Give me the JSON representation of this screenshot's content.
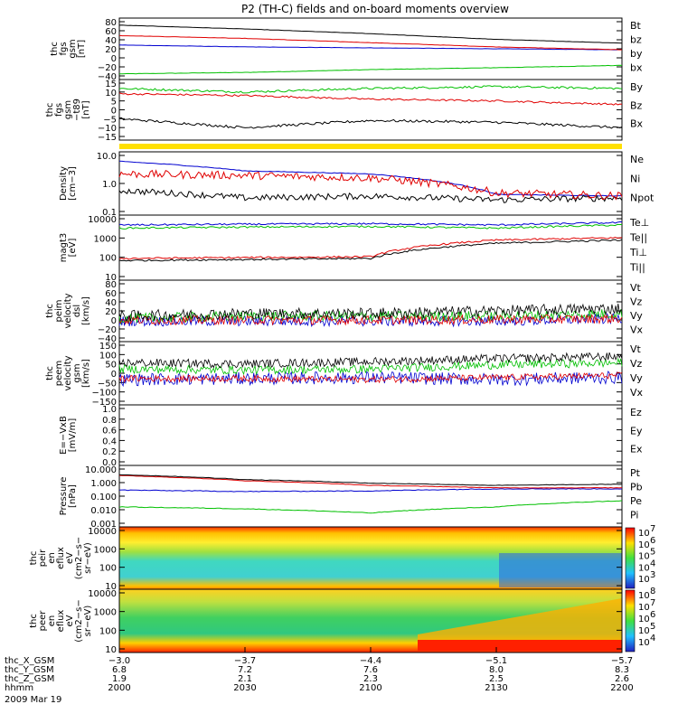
{
  "title": "P2 (TH-C) fields and on-board moments overview",
  "colors": {
    "black": "#000000",
    "red": "#e00000",
    "green": "#00c000",
    "blue": "#0000d0",
    "yellow": "#ffe000"
  },
  "panels": [
    {
      "id": "fgs_gsm",
      "ylabel": [
        "thc",
        "fgs",
        "gsm",
        "[nT]"
      ],
      "ticks": [
        "80",
        "60",
        "40",
        "20",
        "0",
        "−20",
        "−40"
      ],
      "scale": "linear",
      "ylim": [
        -45,
        85
      ],
      "legend": [
        {
          "text": "Bt",
          "color": "black"
        },
        {
          "text": "bz",
          "color": "red"
        },
        {
          "text": "by",
          "color": "green"
        },
        {
          "text": "bx",
          "color": "blue"
        }
      ]
    },
    {
      "id": "fgs_gsm_tbp",
      "ylabel": [
        "thc",
        "fgs",
        "gsm",
        "−t89",
        "[nT]"
      ],
      "ticks": [
        "15",
        "10",
        "5",
        "0",
        "−5",
        "−10",
        "−15"
      ],
      "scale": "linear",
      "ylim": [
        -17,
        17
      ],
      "legend": [
        {
          "text": "By",
          "color": "green"
        },
        {
          "text": "Bz",
          "color": "red"
        },
        {
          "text": "Bx",
          "color": "black"
        }
      ]
    },
    {
      "id": "density",
      "ylabel": [
        "Density",
        "[cm−3]"
      ],
      "ticks": [
        "10.0",
        "1.0",
        "0.1"
      ],
      "scale": "log",
      "ylim": [
        0.1,
        10
      ],
      "legend": [
        {
          "text": "Ne",
          "color": "red"
        },
        {
          "text": "Ni",
          "color": "black"
        },
        {
          "text": "Npot",
          "color": "blue"
        }
      ]
    },
    {
      "id": "temperature",
      "ylabel": [
        "magt3",
        "[eV]"
      ],
      "ticks": [
        "10000",
        "1000",
        "100",
        "10"
      ],
      "scale": "log",
      "ylim": [
        10,
        10000
      ],
      "legend": [
        {
          "text": "Te⊥",
          "color": "red"
        },
        {
          "text": "Te||",
          "color": "black"
        },
        {
          "text": "Ti⊥",
          "color": "red"
        },
        {
          "text": "Ti||",
          "color": "green"
        }
      ]
    },
    {
      "id": "peim_velocity",
      "ylabel": [
        "thc",
        "peim",
        "velocity",
        "dsl",
        "[km/s]"
      ],
      "ticks": [
        "80",
        "60",
        "40",
        "20",
        "0",
        "−20",
        "−40"
      ],
      "scale": "linear",
      "ylim": [
        -40,
        80
      ],
      "legend": [
        {
          "text": "Vt",
          "color": "black"
        },
        {
          "text": "Vz",
          "color": "red"
        },
        {
          "text": "Vy",
          "color": "green"
        },
        {
          "text": "Vx",
          "color": "blue"
        }
      ]
    },
    {
      "id": "peem_velocity",
      "ylabel": [
        "thc",
        "peem",
        "velocity",
        "gsm",
        "[km/s]"
      ],
      "ticks": [
        "150",
        "100",
        "50",
        "0",
        "−50",
        "−100",
        "−150"
      ],
      "scale": "linear",
      "ylim": [
        -150,
        150
      ],
      "legend": [
        {
          "text": "Vt",
          "color": "black"
        },
        {
          "text": "Vz",
          "color": "red"
        },
        {
          "text": "Vy",
          "color": "green"
        },
        {
          "text": "Vx",
          "color": "blue"
        }
      ]
    },
    {
      "id": "efield",
      "ylabel": [
        "E=−VxB",
        "[mV/m]"
      ],
      "ticks": [
        "1.0",
        "0.8",
        "0.6",
        "0.4",
        "0.2",
        "0.0"
      ],
      "scale": "linear",
      "ylim": [
        0,
        1
      ],
      "legend": [
        {
          "text": "Ez",
          "color": "red"
        },
        {
          "text": "Ey",
          "color": "green"
        },
        {
          "text": "Ex",
          "color": "blue"
        }
      ]
    },
    {
      "id": "pressure",
      "ylabel": [
        "Pressure",
        "[nPa]"
      ],
      "ticks": [
        "10.000",
        "1.000",
        "0.100",
        "0.010",
        "0.001"
      ],
      "scale": "log",
      "ylim": [
        0.001,
        10
      ],
      "legend": [
        {
          "text": "Pt",
          "color": "black"
        },
        {
          "text": "Pb",
          "color": "red"
        },
        {
          "text": "Pe",
          "color": "green"
        },
        {
          "text": "Pi",
          "color": "blue"
        }
      ]
    },
    {
      "id": "peir_eflux",
      "ylabel": [
        "thc",
        "peir",
        "en",
        "eflux",
        "eV",
        "(cm2−s−",
        "sr−eV)"
      ],
      "ticks": [
        "10000",
        "1000",
        "100",
        "10"
      ],
      "cbar": [
        "10",
        "10",
        "10",
        "10",
        "10"
      ],
      "cbar_exp": [
        "7",
        "6",
        "5",
        "4",
        "3"
      ]
    },
    {
      "id": "peer_eflux",
      "ylabel": [
        "thc",
        "peer",
        "en",
        "eflux",
        "eV",
        "(cm2−s−",
        "sr−eV)"
      ],
      "ticks": [
        "10000",
        "1000",
        "100",
        "10"
      ],
      "cbar": [
        "10",
        "10",
        "10",
        "10",
        "10"
      ],
      "cbar_exp": [
        "8",
        "7",
        "6",
        "5",
        "4"
      ]
    }
  ],
  "xaxis": {
    "rows": [
      {
        "label": "thc_X_GSM",
        "values": [
          "−3.0",
          "−3.7",
          "−4.4",
          "−5.1",
          "−5.7"
        ]
      },
      {
        "label": "thc_Y_GSM",
        "values": [
          "6.8",
          "7.2",
          "7.6",
          "8.0",
          "8.3"
        ]
      },
      {
        "label": "thc_Z_GSM",
        "values": [
          "1.9",
          "2.1",
          "2.3",
          "2.5",
          "2.6"
        ]
      },
      {
        "label": "hhmm",
        "values": [
          "2000",
          "2030",
          "2100",
          "2130",
          "2200"
        ]
      }
    ],
    "date": "2009 Mar 19"
  },
  "chart_data": {
    "type": "line",
    "x": [
      "2000",
      "2030",
      "2100",
      "2130",
      "2200"
    ],
    "series": [
      {
        "name": "Bt",
        "values": [
          70,
          62,
          52,
          40,
          32
        ]
      },
      {
        "name": "bz",
        "values": [
          48,
          42,
          33,
          24,
          18
        ]
      },
      {
        "name": "by",
        "values": [
          -33,
          -30,
          -24,
          -20,
          -15
        ]
      },
      {
        "name": "bx",
        "values": [
          28,
          24,
          22,
          20,
          18
        ]
      },
      {
        "name": "By",
        "values": [
          12,
          10,
          12,
          13,
          12
        ]
      },
      {
        "name": "Bz",
        "values": [
          9,
          8,
          6,
          5,
          3
        ]
      },
      {
        "name": "Bx",
        "values": [
          -5,
          -10,
          -6,
          -7,
          -10
        ]
      },
      {
        "name": "Ne",
        "values": [
          2.0,
          1.8,
          1.5,
          0.5,
          0.4
        ]
      },
      {
        "name": "Ni",
        "values": [
          0.6,
          0.35,
          0.4,
          0.3,
          0.35
        ]
      },
      {
        "name": "Npot",
        "values": [
          5.0,
          2.5,
          2.0,
          0.45,
          0.4
        ]
      },
      {
        "name": "Pt",
        "values": [
          2.5,
          1.2,
          0.7,
          0.5,
          0.6
        ]
      },
      {
        "name": "Pb",
        "values": [
          2.2,
          1.0,
          0.5,
          0.35,
          0.35
        ]
      },
      {
        "name": "Pe",
        "values": [
          0.02,
          0.015,
          0.008,
          0.02,
          0.05
        ]
      },
      {
        "name": "Pi",
        "values": [
          0.25,
          0.2,
          0.22,
          0.3,
          0.3
        ]
      }
    ]
  }
}
